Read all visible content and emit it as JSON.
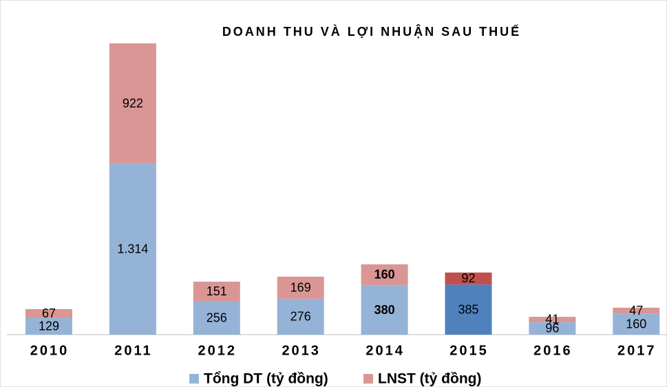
{
  "chart_data": {
    "type": "stacked_bar",
    "title": "DOANH THU VÀ LỢI NHUẬN SAU THUẾ",
    "categories": [
      "2010",
      "2011",
      "2012",
      "2013",
      "2014",
      "2015",
      "2016",
      "2017"
    ],
    "series": [
      {
        "name": "Tổng DT (tỷ đồng)",
        "color": "#95b3d7",
        "highlight_color": "#4f81bd",
        "values": [
          129,
          1314,
          256,
          276,
          380,
          385,
          96,
          160
        ],
        "value_labels": [
          "129",
          "1.314",
          "256",
          "276",
          "380",
          "385",
          "96",
          "160"
        ]
      },
      {
        "name": "LNST (tỷ đồng)",
        "color": "#d99694",
        "highlight_color": "#c0504d",
        "values": [
          67,
          922,
          151,
          169,
          160,
          92,
          41,
          47
        ]
      }
    ],
    "highlight_category": "2015",
    "bold_category": "2014",
    "legend": "bottom"
  }
}
